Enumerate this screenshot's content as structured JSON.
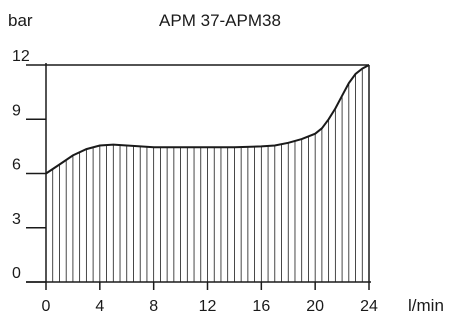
{
  "chart_data": {
    "type": "area",
    "title": "APM 37-APM38",
    "ylabel": "bar",
    "xlabel": "l/min",
    "xlim": [
      0,
      24
    ],
    "ylim": [
      0,
      12
    ],
    "x_ticks": [
      0,
      4,
      8,
      12,
      16,
      20,
      24
    ],
    "y_ticks": [
      0,
      3,
      6,
      9,
      12
    ],
    "fill_pattern": "vertical-hatch",
    "grid": false,
    "series": [
      {
        "x": [
          0,
          1,
          2,
          3,
          4,
          5,
          6,
          8,
          10,
          12,
          14,
          16,
          17,
          18,
          19,
          20,
          20.5,
          21,
          21.5,
          22,
          22.5,
          23,
          23.5,
          24
        ],
        "values": [
          6.0,
          6.5,
          7.0,
          7.35,
          7.55,
          7.6,
          7.55,
          7.45,
          7.45,
          7.45,
          7.45,
          7.5,
          7.55,
          7.7,
          7.9,
          8.2,
          8.5,
          9.0,
          9.6,
          10.3,
          11.0,
          11.5,
          11.8,
          12.0
        ]
      }
    ]
  }
}
